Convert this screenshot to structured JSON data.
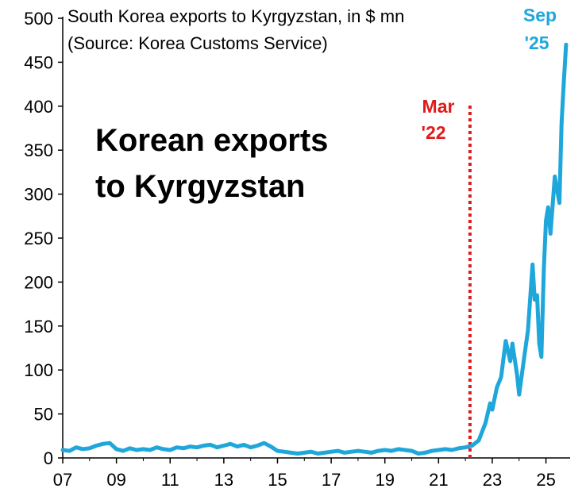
{
  "chart_data": {
    "type": "line",
    "title": "South Korea exports to Kyrgyzstan, in $ mn",
    "subtitle": "(Source: Korea Customs Service)",
    "headline": [
      "Korean exports",
      "to Kyrgyzstan"
    ],
    "xlabel": "",
    "ylabel": "",
    "x_tick_labels": [
      "07",
      "09",
      "11",
      "13",
      "15",
      "17",
      "19",
      "21",
      "23",
      "25"
    ],
    "y_ticks": [
      0,
      50,
      100,
      150,
      200,
      250,
      300,
      350,
      400,
      450,
      500
    ],
    "ylim": [
      0,
      500
    ],
    "grid": false,
    "series": [
      {
        "color": "#1fa7db",
        "x": [
          2007.0,
          2007.25,
          2007.5,
          2007.75,
          2008.0,
          2008.25,
          2008.5,
          2008.75,
          2009.0,
          2009.25,
          2009.5,
          2009.75,
          2010.0,
          2010.25,
          2010.5,
          2010.75,
          2011.0,
          2011.25,
          2011.5,
          2011.75,
          2012.0,
          2012.25,
          2012.5,
          2012.75,
          2013.0,
          2013.25,
          2013.5,
          2013.75,
          2014.0,
          2014.25,
          2014.5,
          2014.75,
          2015.0,
          2015.25,
          2015.5,
          2015.75,
          2016.0,
          2016.25,
          2016.5,
          2016.75,
          2017.0,
          2017.25,
          2017.5,
          2017.75,
          2018.0,
          2018.25,
          2018.5,
          2018.75,
          2019.0,
          2019.25,
          2019.5,
          2019.75,
          2020.0,
          2020.25,
          2020.5,
          2020.75,
          2021.0,
          2021.25,
          2021.5,
          2021.75,
          2022.0,
          2022.25,
          2022.5,
          2022.75,
          2022.92,
          2023.0,
          2023.17,
          2023.33,
          2023.5,
          2023.67,
          2023.75,
          2023.92,
          2024.0,
          2024.17,
          2024.33,
          2024.5,
          2024.58,
          2024.67,
          2024.75,
          2024.83,
          2024.92,
          2025.0,
          2025.08,
          2025.17,
          2025.33,
          2025.5,
          2025.58,
          2025.67,
          2025.75
        ],
        "y": [
          9,
          8,
          12,
          10,
          11,
          14,
          16,
          17,
          10,
          8,
          11,
          9,
          10,
          9,
          12,
          10,
          9,
          12,
          11,
          13,
          12,
          14,
          15,
          12,
          14,
          16,
          13,
          15,
          12,
          14,
          17,
          13,
          8,
          7,
          6,
          5,
          6,
          7,
          5,
          6,
          7,
          8,
          6,
          7,
          8,
          7,
          6,
          8,
          9,
          8,
          10,
          9,
          8,
          5,
          6,
          8,
          9,
          10,
          9,
          11,
          12,
          14,
          20,
          40,
          62,
          55,
          80,
          92,
          133,
          110,
          130,
          95,
          72,
          110,
          145,
          220,
          180,
          185,
          130,
          115,
          215,
          270,
          285,
          255,
          320,
          290,
          380,
          430,
          470
        ]
      }
    ],
    "annotations": [
      {
        "text_lines": [
          "Mar",
          "'22"
        ],
        "x": 2022.17,
        "color": "#e01b1b",
        "style": "vertical dotted line"
      },
      {
        "text_lines": [
          "Sep",
          "'25"
        ],
        "color": "#1fa7db",
        "style": "end label"
      }
    ]
  }
}
